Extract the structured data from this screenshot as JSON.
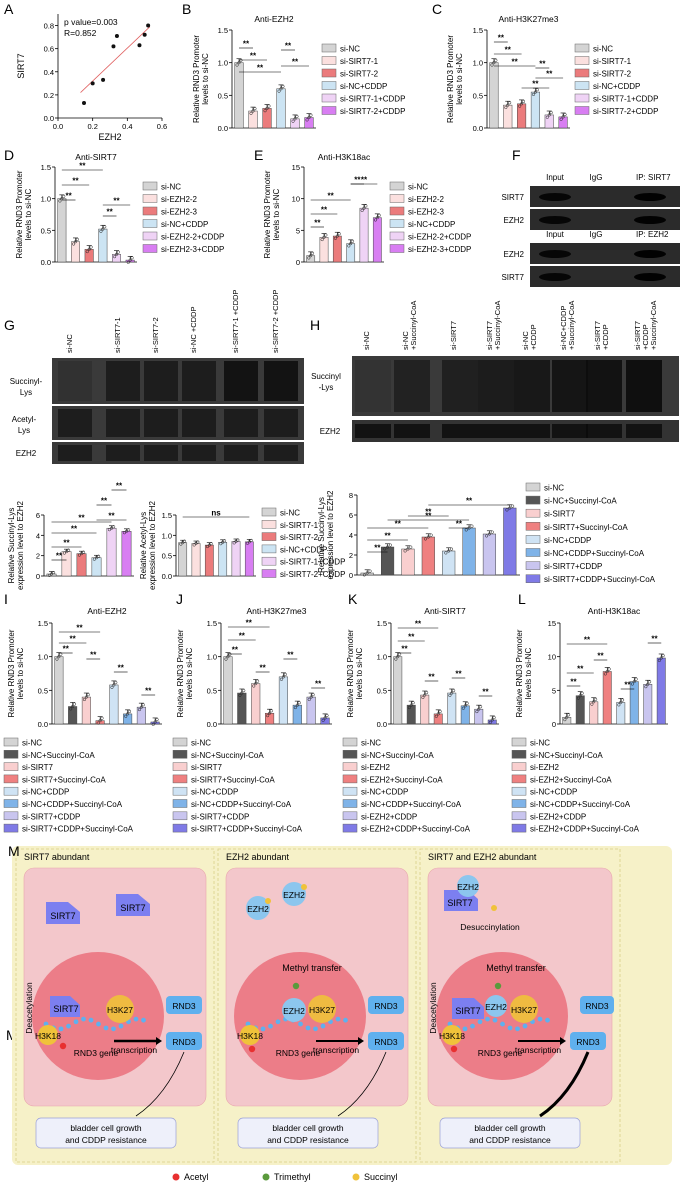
{
  "colors": {
    "si_NC": "#d4d4d4",
    "si_SIRT7_1": "#fbe0df",
    "si_SIRT7_2": "#eb7b7c",
    "si_NC_CDDP": "#cce4f3",
    "si_SIRT7_1_CDDP": "#efd3f5",
    "si_SIRT7_2_CDDP": "#d87ef2",
    "dark": "#555555",
    "pink": "#f9cfcf",
    "red": "#ef8080",
    "lblue": "#cfe3f4",
    "blue": "#7fb3e8",
    "lpurple": "#c9c5ef",
    "purple": "#7f7ae6",
    "panel_bg": "#f6f1c8",
    "cell_bg": "#f3c7cb",
    "nucleus": "#ec7d88",
    "sirt7": "#7c7ff0",
    "ezh2": "#8cc6ee",
    "rnd3": "#5fb0ee",
    "acetyl": "#e83030",
    "trimethyl": "#5a9a3c",
    "succinyl": "#f0c23a"
  },
  "panelA": {
    "letter": "A",
    "pval": "p value=0.003",
    "r": "R=0.852",
    "xlabel": "EZH2",
    "ylabel": "SIRT7",
    "xticks": [
      "0.0",
      "0.2",
      "0.4",
      "0.6"
    ],
    "yticks": [
      "0.0",
      "0.2",
      "0.4",
      "0.6",
      "0.8"
    ]
  },
  "panelF": {
    "letter": "F",
    "headers1": [
      "Input",
      "IgG",
      "IP: SIRT7"
    ],
    "headers2": [
      "Input",
      "IgG",
      "IP: EZH2"
    ],
    "rows1": [
      "SIRT7",
      "EZH2"
    ],
    "rows2": [
      "EZH2",
      "SIRT7"
    ]
  },
  "panelG": {
    "letter": "G",
    "lanes": [
      "si-NC",
      "si-SIRT7-1",
      "si-SIRT7-2",
      "si-NC +CDDP",
      "si-SIRT7-1 +CDDP",
      "si-SIRT7-2 +CDDP"
    ],
    "rows": [
      "Succinyl-Lys",
      "Acetyl-Lys",
      "EZH2"
    ]
  },
  "panelH": {
    "letter": "H",
    "lanes": [
      "si-NC",
      "si-NC +Succinyl-CoA",
      "si-SIRT7",
      "si-SIRT7 +Succinyl-CoA",
      "si-NC +CDDP",
      "si-NC+CDDP +Succinyl-CoA",
      "si-SIRT7 +CDDP",
      "si-SIRT7 +CDDP +Succinyl-CoA"
    ],
    "rows": [
      "Succinyl -Lys",
      "EZH2"
    ]
  },
  "legends": {
    "sirt7_siRNA": [
      "si-NC",
      "si-SIRT7-1",
      "si-SIRT7-2",
      "si-NC+CDDP",
      "si-SIRT7-1+CDDP",
      "si-SIRT7-2+CDDP"
    ],
    "ezh2_siRNA": [
      "si-NC",
      "si-EZH2-2",
      "si-EZH2-3",
      "si-NC+CDDP",
      "si-EZH2-2+CDDP",
      "si-EZH2-3+CDDP"
    ],
    "sirt7_succ": [
      "si-NC",
      "si-NC+Succinyl-CoA",
      "si-SIRT7",
      "si-SIRT7+Succinyl-CoA",
      "si-NC+CDDP",
      "si-NC+CDDP+Succinyl-CoA",
      "si-SIRT7+CDDP",
      "si-SIRT7+CDDP+Succinyl-CoA"
    ],
    "ezh2_succ": [
      "si-NC",
      "si-NC+Succinyl-CoA",
      "si-EZH2",
      "si-EZH2+Succinyl-CoA",
      "si-NC+CDDP",
      "si-NC+CDDP+Succinyl-CoA",
      "si-EZH2+CDDP",
      "si-EZH2+CDDP+Succinyl-CoA"
    ]
  },
  "panelM": {
    "letter": "M",
    "titles": [
      "SIRT7 abundant",
      "EZH2 abundant",
      "SIRT7 and EZH2 abundant"
    ],
    "sirt7": "SIRT7",
    "ezh2": "EZH2",
    "rnd3": "RND3",
    "h3k27": "H3K27",
    "h3k18": "H3K18",
    "deacetylation": "Deacetylation",
    "methyl_transfer": "Methyl transfer",
    "desuccinylation": "Desuccinylation",
    "transcription": "transcription",
    "rnd3_gene": "RND3 gene",
    "outcome_line1": "bladder cell growth",
    "outcome_line2": "and CDDP resistance",
    "key": [
      "Acetyl",
      "Trimethyl",
      "Succinyl"
    ]
  },
  "chart_data": [
    {
      "id": "A",
      "type": "scatter",
      "xlabel": "EZH2",
      "ylabel": "SIRT7",
      "xlim": [
        0,
        0.6
      ],
      "ylim": [
        0,
        0.9
      ],
      "points": [
        [
          0.15,
          0.13
        ],
        [
          0.2,
          0.3
        ],
        [
          0.26,
          0.33
        ],
        [
          0.32,
          0.62
        ],
        [
          0.34,
          0.71
        ],
        [
          0.47,
          0.63
        ],
        [
          0.5,
          0.72
        ],
        [
          0.52,
          0.8
        ]
      ],
      "fit_line": [
        [
          0.13,
          0.22
        ],
        [
          0.53,
          0.79
        ]
      ]
    },
    {
      "id": "B",
      "type": "bar",
      "title": "Anti-EZH2",
      "ylabel": "Relative RND3 Promoter levels to si-NC",
      "ylim": [
        0,
        1.5
      ],
      "yticks": [
        "0.0",
        "0.5",
        "1.0",
        "1.5"
      ],
      "categories": [
        "si-NC",
        "si-SIRT7-1",
        "si-SIRT7-2",
        "si-NC+CDDP",
        "si-SIRT7-1+CDDP",
        "si-SIRT7-2+CDDP"
      ],
      "values": [
        1.0,
        0.26,
        0.3,
        0.6,
        0.14,
        0.16
      ],
      "significance": "**"
    },
    {
      "id": "C",
      "type": "bar",
      "title": "Anti-H3K27me3",
      "ylabel": "Relative RND3 Promoter levels to si-NC",
      "ylim": [
        0,
        1.5
      ],
      "yticks": [
        "0.0",
        "0.5",
        "1.0",
        "1.5"
      ],
      "categories": [
        "si-NC",
        "si-SIRT7-1",
        "si-SIRT7-2",
        "si-NC+CDDP",
        "si-SIRT7-1+CDDP",
        "si-SIRT7-2+CDDP"
      ],
      "values": [
        1.0,
        0.35,
        0.37,
        0.55,
        0.2,
        0.17
      ],
      "significance": "**"
    },
    {
      "id": "D",
      "type": "bar",
      "title": "Anti-SIRT7",
      "ylabel": "Relative RND3 Promoter levels to si-NC",
      "ylim": [
        0,
        1.5
      ],
      "yticks": [
        "0.0",
        "0.5",
        "1.0",
        "1.5"
      ],
      "categories": [
        "si-NC",
        "si-EZH2-2",
        "si-EZH2-3",
        "si-NC+CDDP",
        "si-EZH2-2+CDDP",
        "si-EZH2-3+CDDP"
      ],
      "values": [
        1.0,
        0.32,
        0.2,
        0.52,
        0.12,
        0.03
      ],
      "significance": "**"
    },
    {
      "id": "E",
      "type": "bar",
      "title": "Anti-H3K18ac",
      "ylabel": "Relative RND3 Promoter levels to si-NC",
      "ylim": [
        0,
        15
      ],
      "yticks": [
        "0",
        "5",
        "10",
        "15"
      ],
      "categories": [
        "si-NC",
        "si-EZH2-2",
        "si-EZH2-3",
        "si-NC+CDDP",
        "si-EZH2-2+CDDP",
        "si-EZH2-3+CDDP"
      ],
      "values": [
        1.0,
        3.9,
        4.1,
        2.9,
        8.5,
        7.0
      ],
      "significance": "**"
    },
    {
      "id": "G1",
      "type": "bar",
      "ylabel": "Relative Succinyl-Lys expression level to EZH2",
      "ylim": [
        0,
        6
      ],
      "yticks": [
        "0",
        "2",
        "4",
        "6"
      ],
      "categories": [
        "si-NC",
        "si-SIRT7-1",
        "si-SIRT7-2",
        "si-NC+CDDP",
        "si-SIRT7-1+CDDP",
        "si-SIRT7-2+CDDP"
      ],
      "values": [
        0.2,
        2.4,
        2.2,
        1.8,
        4.7,
        4.4
      ],
      "significance": "**"
    },
    {
      "id": "G2",
      "type": "bar",
      "ylabel": "Relative Acetyl-Lys expression level to EZH2",
      "ylim": [
        0,
        1.5
      ],
      "yticks": [
        "0.0",
        "0.5",
        "1.0",
        "1.5"
      ],
      "categories": [
        "si-NC",
        "si-SIRT7-1",
        "si-SIRT7-2",
        "si-NC+CDDP",
        "si-SIRT7-1+CDDP",
        "si-SIRT7-2+CDDP"
      ],
      "values": [
        0.82,
        0.8,
        0.76,
        0.83,
        0.85,
        0.84
      ],
      "significance": "ns"
    },
    {
      "id": "H",
      "type": "bar",
      "ylabel": "Relative Succinyl-Lys expression level to EZH2",
      "ylim": [
        0,
        8
      ],
      "yticks": [
        "0",
        "2",
        "4",
        "6",
        "8"
      ],
      "categories": [
        "si-NC",
        "si-NC+Succinyl-CoA",
        "si-SIRT7",
        "si-SIRT7+Succinyl-CoA",
        "si-NC+CDDP",
        "si-NC+CDDP+Succinyl-CoA",
        "si-SIRT7+CDDP",
        "si-SIRT7+CDDP+Succinyl-CoA"
      ],
      "values": [
        0.2,
        2.8,
        2.6,
        3.8,
        2.4,
        4.7,
        4.1,
        6.7
      ],
      "significance": "**"
    },
    {
      "id": "I",
      "type": "bar",
      "title": "Anti-EZH2",
      "ylabel": "Relative RND3 Promoter levels to si-NC",
      "ylim": [
        0,
        1.5
      ],
      "yticks": [
        "0.0",
        "0.5",
        "1.0",
        "1.5"
      ],
      "categories": [
        "si-NC",
        "si-NC+Succinyl-CoA",
        "si-SIRT7",
        "si-SIRT7+Succinyl-CoA",
        "si-NC+CDDP",
        "si-NC+CDDP+Succinyl-CoA",
        "si-SIRT7+CDDP",
        "si-SIRT7+CDDP+Succinyl-CoA"
      ],
      "values": [
        1.0,
        0.26,
        0.4,
        0.05,
        0.58,
        0.15,
        0.25,
        0.03
      ],
      "significance": "**"
    },
    {
      "id": "J",
      "type": "bar",
      "title": "Anti-H3K27me3",
      "ylabel": "Relative RND3 Promoter levels to si-NC",
      "ylim": [
        0,
        1.5
      ],
      "yticks": [
        "0.0",
        "0.5",
        "1.0",
        "1.5"
      ],
      "categories": [
        "si-NC",
        "si-NC+Succinyl-CoA",
        "si-SIRT7",
        "si-SIRT7+Succinyl-CoA",
        "si-NC+CDDP",
        "si-NC+CDDP+Succinyl-CoA",
        "si-SIRT7+CDDP",
        "si-SIRT7+CDDP+Succinyl-CoA"
      ],
      "values": [
        1.0,
        0.46,
        0.6,
        0.16,
        0.7,
        0.28,
        0.4,
        0.09
      ],
      "significance": "**"
    },
    {
      "id": "K",
      "type": "bar",
      "title": "Anti-SIRT7",
      "ylabel": "Relative RND3 Promoter levels to si-NC",
      "ylim": [
        0,
        1.5
      ],
      "yticks": [
        "0.0",
        "0.5",
        "1.0",
        "1.5"
      ],
      "categories": [
        "si-NC",
        "si-NC+Succinyl-CoA",
        "si-EZH2",
        "si-EZH2+Succinyl-CoA",
        "si-NC+CDDP",
        "si-NC+CDDP+Succinyl-CoA",
        "si-EZH2+CDDP",
        "si-EZH2+CDDP+Succinyl-CoA"
      ],
      "values": [
        1.0,
        0.28,
        0.43,
        0.15,
        0.46,
        0.27,
        0.22,
        0.06
      ],
      "significance": "**"
    },
    {
      "id": "L",
      "type": "bar",
      "title": "Anti-H3K18ac",
      "ylabel": "Relative RND3 Promoter levels to si-NC",
      "ylim": [
        0,
        15
      ],
      "yticks": [
        "0",
        "5",
        "10",
        "15"
      ],
      "categories": [
        "si-NC",
        "si-NC+Succinyl-CoA",
        "si-EZH2",
        "si-EZH2+Succinyl-CoA",
        "si-NC+CDDP",
        "si-NC+CDDP+Succinyl-CoA",
        "si-EZH2+CDDP",
        "si-EZH2+CDDP+Succinyl-CoA"
      ],
      "values": [
        1.0,
        4.2,
        3.3,
        7.8,
        3.2,
        6.3,
        5.9,
        9.8
      ],
      "significance": "**"
    }
  ]
}
